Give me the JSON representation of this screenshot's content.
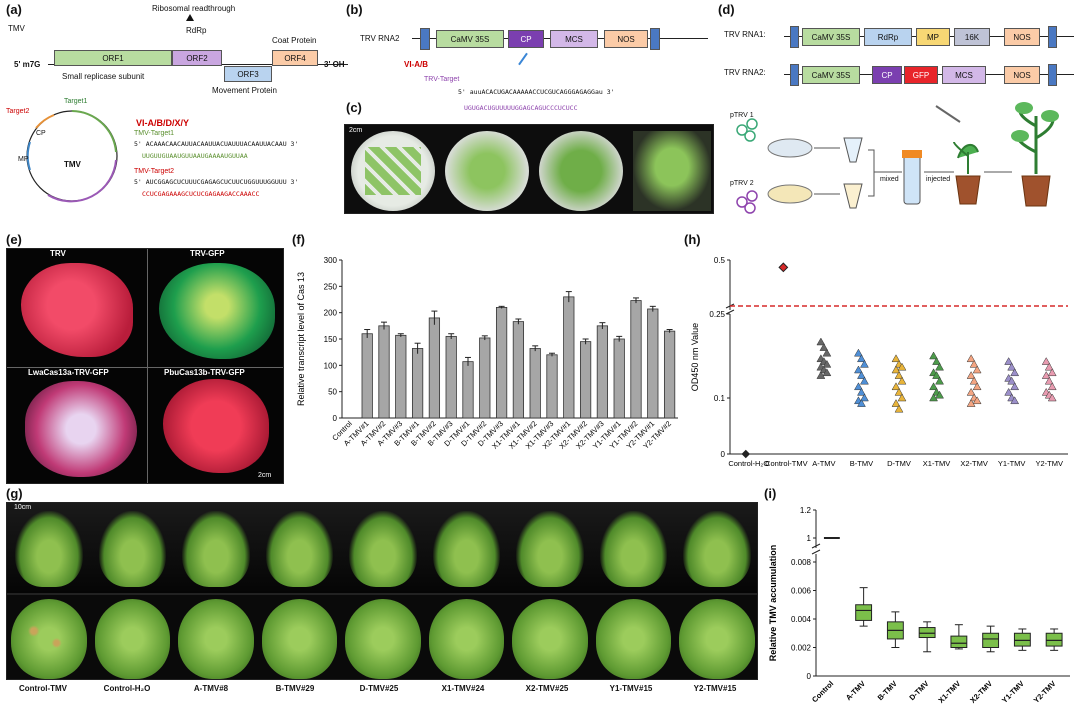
{
  "panels": {
    "a": {
      "label": "(a)",
      "virus": "TMV",
      "five_prime": "5' m7G",
      "three_prime": "3' OH",
      "orfs": [
        "ORF1",
        "ORF2",
        "ORF3",
        "ORF4"
      ],
      "readthrough": "Ribosomal readthrough",
      "rdrp": "RdRp",
      "coat": "Coat Protein",
      "replicase": "Small replicase subunit",
      "movement": "Movement Protein",
      "target1": "Target1",
      "target2": "Target2",
      "circle_label": "TMV",
      "cp": "CP",
      "mp": "MP",
      "groups": "VI-A/B/D/X/Y",
      "t1_name": "TMV-Target1",
      "t1_seq": "5' ACAAACAACAUUACAAUUACUAUUUACAAUUACAAU 3'",
      "t1_guide": "UUGUUGUAAUGUUAAUGAAAAUGUUAA",
      "t2_name": "TMV-Target2",
      "t2_seq": "5' AUCGGAGCUCUUUCGAGAGCUCUUCUGGUUUGGUUU 3'",
      "t2_guide": "CCUCGAGAAAGCUCUCGAGAAGACCAAACC"
    },
    "b": {
      "label": "(b)",
      "title": "TRV RNA2",
      "boxes": [
        "CaMV 35S",
        "CP",
        "MCS",
        "NOS"
      ],
      "groups": "VI-A/B",
      "target_name": "TRV-Target",
      "seq": "5' auuACACUGACAAAAACCUCGUCAGGGAGAGGau 3'",
      "guide": "UGUGACUGUUUUUGGAGCAGUCCCUCUCC"
    },
    "c": {
      "label": "(c)",
      "scale": "2cm"
    },
    "d": {
      "label": "(d)",
      "rna1": "TRV RNA1:",
      "rna1_boxes": [
        "CaMV 35S",
        "RdRp",
        "MP",
        "16K",
        "NOS"
      ],
      "rna2": "TRV RNA2:",
      "rna2_boxes": [
        "CaMV 35S",
        "CP",
        "GFP",
        "MCS",
        "NOS"
      ],
      "ptrv1": "pTRV 1",
      "ptrv2": "pTRV 2",
      "mixed": "mixed",
      "injected": "injected"
    },
    "e": {
      "label": "(e)",
      "captions": [
        "TRV",
        "TRV-GFP",
        "LwaCas13a-TRV-GFP",
        "PbuCas13b-TRV-GFP"
      ],
      "scale": "2cm"
    },
    "f": {
      "label": "(f)"
    },
    "g": {
      "label": "(g)",
      "scale": "10cm",
      "captions": [
        "Control-TMV",
        "Control-H₂O",
        "A-TMV#8",
        "B-TMV#29",
        "D-TMV#25",
        "X1-TMV#24",
        "X2-TMV#25",
        "Y1-TMV#15",
        "Y2-TMV#15"
      ]
    },
    "h": {
      "label": "(h)"
    },
    "i": {
      "label": "(i)"
    }
  },
  "chart_data": [
    {
      "type": "bar",
      "panel": "f",
      "ylabel": "Relative transcript level of Cas 13",
      "ylim": [
        0,
        300
      ],
      "yticks": [
        0,
        50,
        100,
        150,
        200,
        250,
        300
      ],
      "categories": [
        "Control",
        "A-TMV#1",
        "A-TMV#2",
        "A-TMV#3",
        "B-TMV#1",
        "B-TMV#2",
        "B-TMV#3",
        "D-TMV#1",
        "D-TMV#2",
        "D-TMV#3",
        "X1-TMV#1",
        "X1-TMV#2",
        "X1-TMV#3",
        "X2-TMV#1",
        "X2-TMV#2",
        "X2-TMV#3",
        "Y1-TMV#1",
        "Y1-TMV#2",
        "Y2-TMV#1",
        "Y2-TMV#2"
      ],
      "values": [
        0,
        160,
        175,
        157,
        132,
        190,
        155,
        107,
        152,
        210,
        183,
        132,
        120,
        230,
        145,
        175,
        150,
        223,
        207,
        165
      ],
      "errors": [
        0,
        8,
        7,
        3,
        10,
        13,
        5,
        8,
        4,
        2,
        5,
        5,
        3,
        10,
        5,
        6,
        5,
        5,
        5,
        3
      ]
    },
    {
      "type": "scatter",
      "panel": "h",
      "ylabel": "OD450 nm Value",
      "yticks": [
        0,
        0.1,
        0.25,
        0.5
      ],
      "threshold": 0.25,
      "categories": [
        "Control-H₂O",
        "Control-TMV",
        "A-TMV",
        "B-TMV",
        "D-TMV",
        "X1-TMV",
        "X2-TMV",
        "Y1-TMV",
        "Y2-TMV"
      ],
      "colors": [
        "#222222",
        "#d62828",
        "#666666",
        "#4f8fd6",
        "#e8b43a",
        "#4c9a4a",
        "#f4a582",
        "#9b8fc9",
        "#e89bb0"
      ],
      "series_points": [
        [
          0.0
        ],
        [
          0.46
        ],
        [
          0.2,
          0.19,
          0.18,
          0.17,
          0.165,
          0.16,
          0.155,
          0.15,
          0.145,
          0.14
        ],
        [
          0.18,
          0.17,
          0.16,
          0.15,
          0.14,
          0.13,
          0.12,
          0.11,
          0.1,
          0.095,
          0.09
        ],
        [
          0.17,
          0.16,
          0.155,
          0.15,
          0.14,
          0.13,
          0.12,
          0.11,
          0.1,
          0.09,
          0.08
        ],
        [
          0.175,
          0.165,
          0.155,
          0.145,
          0.14,
          0.13,
          0.12,
          0.11,
          0.105,
          0.1
        ],
        [
          0.17,
          0.16,
          0.15,
          0.14,
          0.13,
          0.12,
          0.11,
          0.1,
          0.095,
          0.09
        ],
        [
          0.165,
          0.155,
          0.145,
          0.135,
          0.13,
          0.12,
          0.11,
          0.1,
          0.095
        ],
        [
          0.165,
          0.155,
          0.145,
          0.14,
          0.13,
          0.12,
          0.11,
          0.105,
          0.1
        ]
      ]
    },
    {
      "type": "box",
      "panel": "i",
      "ylabel": "Relative TMV accumulation",
      "yticks": [
        0,
        0.002,
        0.004,
        0.006,
        0.008,
        1,
        1.2
      ],
      "categories": [
        "Control",
        "A-TMV",
        "B-TMV",
        "D-TMV",
        "X1-TMV",
        "X2-TMV",
        "Y1-TMV",
        "Y2-TMV"
      ],
      "boxes": [
        {
          "min": 1,
          "q1": 1,
          "median": 1,
          "q3": 1,
          "max": 1
        },
        {
          "min": 0.0035,
          "q1": 0.0039,
          "median": 0.0046,
          "q3": 0.005,
          "max": 0.0062
        },
        {
          "min": 0.002,
          "q1": 0.0026,
          "median": 0.0032,
          "q3": 0.0038,
          "max": 0.0045
        },
        {
          "min": 0.0017,
          "q1": 0.0027,
          "median": 0.003,
          "q3": 0.0034,
          "max": 0.0038
        },
        {
          "min": 0.0019,
          "q1": 0.002,
          "median": 0.0023,
          "q3": 0.0028,
          "max": 0.0036
        },
        {
          "min": 0.0017,
          "q1": 0.002,
          "median": 0.0026,
          "q3": 0.003,
          "max": 0.0035
        },
        {
          "min": 0.0018,
          "q1": 0.0021,
          "median": 0.0025,
          "q3": 0.003,
          "max": 0.0033
        },
        {
          "min": 0.0018,
          "q1": 0.0021,
          "median": 0.0025,
          "q3": 0.003,
          "max": 0.0033
        }
      ]
    }
  ]
}
